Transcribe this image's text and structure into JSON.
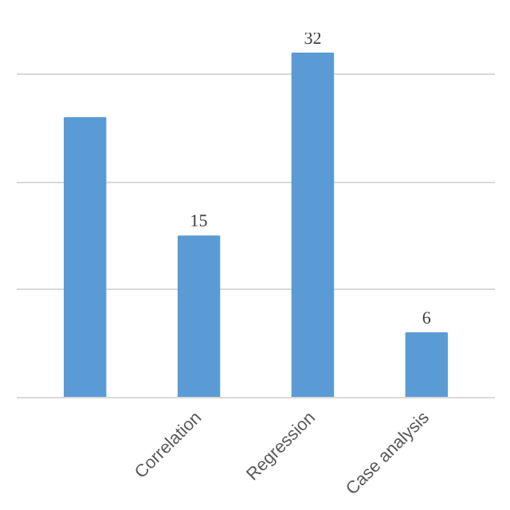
{
  "chart_data": {
    "type": "bar",
    "categories": [
      null,
      "Correlation",
      "Regression",
      "Case analysis"
    ],
    "values": [
      26,
      15,
      32,
      6
    ],
    "value_labels": [
      null,
      "15",
      "32",
      "6"
    ],
    "color": "#5b9bd5",
    "yticks": [
      {
        "value": 0,
        "label": null
      },
      {
        "value": 10,
        "label": null
      },
      {
        "value": 20,
        "label": null
      },
      {
        "value": 30,
        "label": null
      }
    ],
    "grid": "y"
  }
}
